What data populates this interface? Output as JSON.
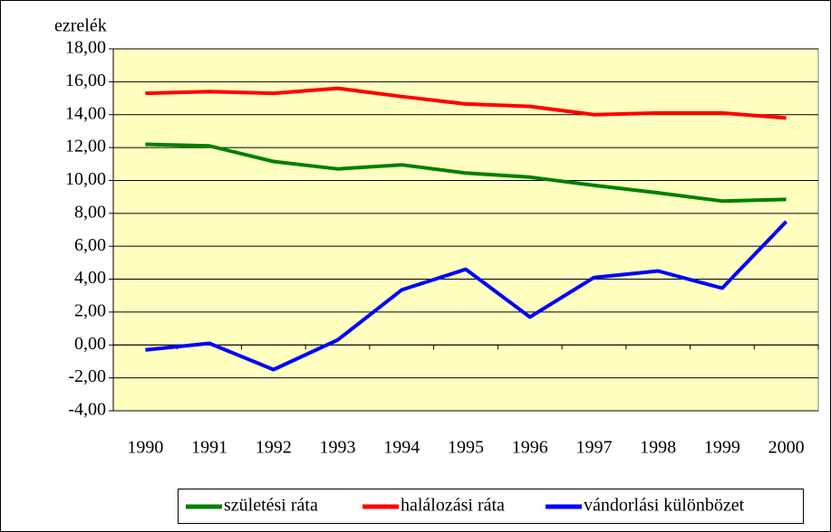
{
  "chart_data": {
    "type": "line",
    "y_label": "ezrelék",
    "categories": [
      "1990",
      "1991",
      "1992",
      "1993",
      "1994",
      "1995",
      "1996",
      "1997",
      "1998",
      "1999",
      "2000"
    ],
    "series": [
      {
        "name": "születési ráta",
        "color": "#008000",
        "values": [
          12.2,
          12.1,
          11.15,
          10.7,
          10.95,
          10.45,
          10.2,
          9.7,
          9.25,
          8.75,
          8.85
        ]
      },
      {
        "name": "halálozási ráta",
        "color": "#ff0000",
        "values": [
          15.3,
          15.4,
          15.3,
          15.6,
          15.1,
          14.65,
          14.5,
          14.0,
          14.1,
          14.1,
          13.8
        ]
      },
      {
        "name": "vándorlási különbözet",
        "color": "#0000ff",
        "values": [
          -0.3,
          0.1,
          -1.5,
          0.3,
          3.35,
          4.6,
          1.7,
          4.1,
          4.5,
          3.45,
          7.5
        ]
      }
    ],
    "ylim": [
      -4,
      18
    ],
    "yticks": [
      {
        "value": -4,
        "label": "-4,00"
      },
      {
        "value": -2,
        "label": "-2,00"
      },
      {
        "value": 0,
        "label": "0,00"
      },
      {
        "value": 2,
        "label": "2,00"
      },
      {
        "value": 4,
        "label": "4,00"
      },
      {
        "value": 6,
        "label": "6,00"
      },
      {
        "value": 8,
        "label": "8,00"
      },
      {
        "value": 10,
        "label": "10,00"
      },
      {
        "value": 12,
        "label": "12,00"
      },
      {
        "value": 14,
        "label": "14,00"
      },
      {
        "value": 16,
        "label": "16,00"
      },
      {
        "value": 18,
        "label": "18,00"
      }
    ],
    "grid": true,
    "background": "#ffffc0",
    "legend": "bottom"
  }
}
